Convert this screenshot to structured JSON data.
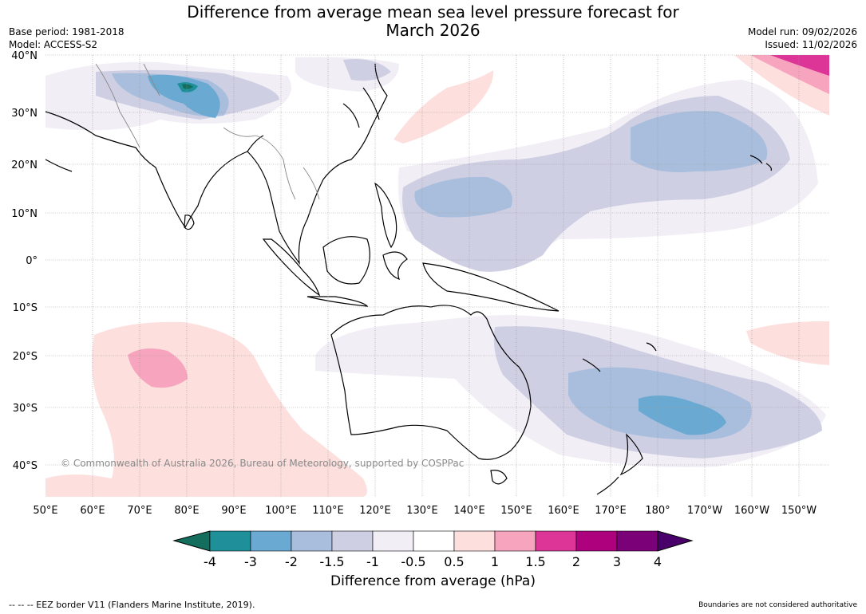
{
  "title": {
    "line1": "Difference from average mean sea level pressure forecast for",
    "line2": "March 2026"
  },
  "meta": {
    "base_period": "Base period: 1981-2018",
    "model": "Model: ACCESS-S2",
    "model_run": "Model run: 09/02/2026",
    "issued": "Issued: 11/02/2026"
  },
  "map": {
    "lat_labels": [
      "40°N",
      "30°N",
      "20°N",
      "10°N",
      "0°",
      "10°S",
      "20°S",
      "30°S",
      "40°S"
    ],
    "lon_labels": [
      "50°E",
      "60°E",
      "70°E",
      "80°E",
      "90°E",
      "100°E",
      "110°E",
      "120°E",
      "130°E",
      "140°E",
      "150°E",
      "160°E",
      "170°E",
      "180°",
      "170°W",
      "160°W",
      "150°W"
    ],
    "copyright": "© Commonwealth of Australia 2026, Bureau of Meteorology, supported by COSPPac"
  },
  "colorbar": {
    "tick_labels": [
      "-4",
      "-3",
      "-2",
      "-1.5",
      "-1",
      "-0.5",
      "0.5",
      "1",
      "1.5",
      "2",
      "3",
      "4"
    ],
    "label": "Difference from average (hPa)",
    "colors": [
      "#136e5e",
      "#1f8f99",
      "#6aa9d2",
      "#a9bedd",
      "#cfcfe4",
      "#f1eef6",
      "#ffffff",
      "#fde0de",
      "#f7a4be",
      "#dd3497",
      "#ad017e",
      "#7a0177",
      "#49006a"
    ]
  },
  "footer": {
    "eez_note": "--  --  -- EEZ border V11 (Flanders Marine Institute, 2019).",
    "disclaimer": "Boundaries are not considered authoritative"
  }
}
